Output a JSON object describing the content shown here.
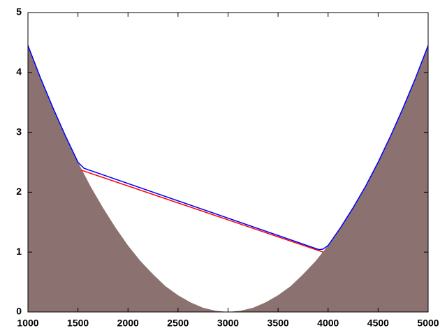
{
  "chart_data": {
    "type": "line",
    "xlim": [
      1000,
      5000
    ],
    "xticks": [
      1000,
      1500,
      2000,
      2500,
      3000,
      3500,
      4000,
      4500,
      5000
    ],
    "ylim": [
      0,
      5
    ],
    "yticks": [
      0,
      1,
      2,
      3,
      4,
      5
    ],
    "series": [
      {
        "style": "area",
        "color": "#8b716f",
        "x": [
          1000,
          1125,
          1250,
          1375,
          1500,
          1625,
          1750,
          1875,
          2000,
          2125,
          2250,
          2375,
          2500,
          2625,
          2750,
          2875,
          3000,
          3125,
          3250,
          3375,
          3500,
          3625,
          3750,
          3875,
          4000,
          4125,
          4250,
          4375,
          4500,
          4625,
          4750,
          4875,
          5000
        ],
        "values": [
          4.45,
          3.91,
          3.41,
          2.94,
          2.5,
          2.1,
          1.74,
          1.41,
          1.11,
          0.85,
          0.63,
          0.43,
          0.28,
          0.16,
          0.07,
          0.02,
          0,
          0.02,
          0.07,
          0.16,
          0.28,
          0.43,
          0.63,
          0.85,
          1.11,
          1.41,
          1.74,
          2.1,
          2.5,
          2.94,
          3.41,
          3.91,
          4.45
        ]
      },
      {
        "style": "line",
        "color": "#ff0000",
        "x": [
          1530,
          3950
        ],
        "values": [
          2.37,
          1.0
        ]
      },
      {
        "style": "line",
        "color": "#0000ff",
        "x": [
          1000,
          1125,
          1250,
          1375,
          1500,
          1560,
          3910,
          3950,
          4000,
          4125,
          4250,
          4375,
          4500,
          4625,
          4750,
          4875,
          5000
        ],
        "values": [
          4.45,
          3.91,
          3.41,
          2.94,
          2.5,
          2.4,
          1.04,
          1.05,
          1.11,
          1.41,
          1.74,
          2.1,
          2.5,
          2.94,
          3.41,
          3.91,
          4.45
        ]
      }
    ]
  }
}
